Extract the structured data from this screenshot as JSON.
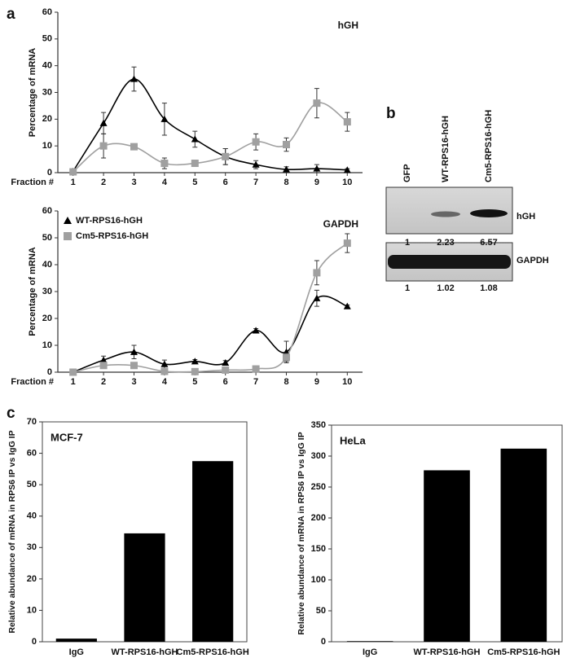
{
  "figure": {
    "panel_labels": [
      "a",
      "b",
      "c"
    ],
    "blot": {
      "lanes": [
        "GFP",
        "WT-RPS16-hGH",
        "Cm5-RPS16-hGH"
      ],
      "rows": [
        {
          "label": "hGH",
          "quantities": [
            1,
            2.23,
            6.57
          ]
        },
        {
          "label": "GAPDH",
          "quantities": [
            1,
            1.02,
            1.08
          ]
        }
      ]
    }
  },
  "chart_data": [
    {
      "type": "line",
      "title": "hGH",
      "y_label": "Percentage of mRNA",
      "x_label": "Fraction #",
      "x": [
        1,
        2,
        3,
        4,
        5,
        6,
        7,
        8,
        9,
        10
      ],
      "xlim": [
        0.5,
        10.5
      ],
      "ylim": [
        0,
        60
      ],
      "yticks": [
        0,
        10,
        20,
        30,
        40,
        50,
        60
      ],
      "legend": false,
      "series": [
        {
          "color": "#000000",
          "marker": "triangle",
          "values": [
            0.5,
            18.5,
            35,
            20,
            12.5,
            6,
            3,
            1.2,
            1.5,
            1
          ],
          "errors": [
            0.5,
            4,
            4.5,
            6,
            3,
            3,
            1.5,
            1,
            1.5,
            0.5
          ]
        },
        {
          "color": "#a0a0a0",
          "marker": "square",
          "values": [
            0.3,
            10,
            9.7,
            3.5,
            3.5,
            6,
            11.5,
            10.5,
            26,
            19
          ],
          "errors": [
            0.5,
            4.5,
            0.5,
            2,
            0.5,
            3,
            3,
            2.5,
            5.5,
            3.5
          ]
        }
      ]
    },
    {
      "type": "line",
      "title": "GAPDH",
      "y_label": "Percentage of mRNA",
      "x_label": "Fraction #",
      "x": [
        1,
        2,
        3,
        4,
        5,
        6,
        7,
        8,
        9,
        10
      ],
      "xlim": [
        0.5,
        10.5
      ],
      "ylim": [
        0,
        60
      ],
      "yticks": [
        0,
        10,
        20,
        30,
        40,
        50,
        60
      ],
      "legend": true,
      "series": [
        {
          "name": "WT-RPS16-hGH",
          "color": "#000000",
          "marker": "triangle",
          "values": [
            0,
            4.5,
            7.5,
            3,
            4,
            3.5,
            15.5,
            7.5,
            27.5,
            24.5
          ],
          "errors": [
            0.3,
            1.5,
            2.5,
            1.5,
            0.7,
            0.8,
            0.7,
            4,
            3,
            0.5
          ]
        },
        {
          "name": "Cm5-RPS16-hGH",
          "color": "#a0a0a0",
          "marker": "square",
          "values": [
            0,
            2.5,
            2.5,
            0.3,
            0.2,
            0.8,
            1.2,
            5.5,
            37,
            48
          ],
          "errors": [
            0.3,
            0.5,
            0.5,
            0.5,
            0.3,
            0.3,
            0.5,
            1.5,
            4.5,
            3.5
          ]
        }
      ]
    },
    {
      "type": "bar",
      "title": "MCF-7",
      "y_label": "Relative abundance of mRNA in RPS6 IP vs IgG IP",
      "categories": [
        "IgG",
        "WT-RPS16-hGH",
        "Cm5-RPS16-hGH"
      ],
      "values": [
        1,
        34.5,
        57.5
      ],
      "color": "#000000",
      "ylim": [
        0,
        70
      ],
      "yticks": [
        0,
        10,
        20,
        30,
        40,
        50,
        60,
        70
      ]
    },
    {
      "type": "bar",
      "title": "HeLa",
      "y_label": "Relative abundance of mRNA in RPS6 IP vs IgG IP",
      "categories": [
        "IgG",
        "WT-RPS16-hGH",
        "Cm5-RPS16-hGH"
      ],
      "values": [
        1,
        277,
        312
      ],
      "color": "#000000",
      "ylim": [
        0,
        350
      ],
      "yticks": [
        0,
        50,
        100,
        150,
        200,
        250,
        300,
        350
      ]
    }
  ]
}
